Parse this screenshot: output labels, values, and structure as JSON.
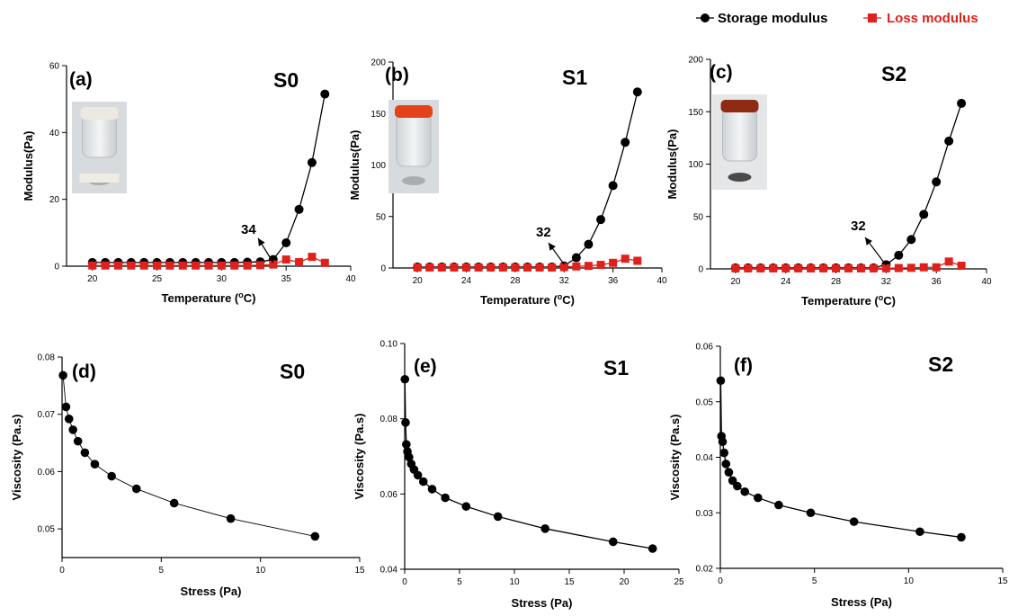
{
  "colors": {
    "storage": "#000000",
    "loss": "#e0201b",
    "axis": "#000000"
  },
  "legend": {
    "storage_label": "Storage modulus",
    "loss_label": "Loss modulus"
  },
  "chart_data": [
    {
      "panel": "(a)",
      "title": "S0",
      "type": "line",
      "xlabel": "Temperature (oC)",
      "ylabel": "Modulus(Pa)",
      "xlim": [
        18,
        40
      ],
      "ylim": [
        0,
        60
      ],
      "xticks": [
        20,
        25,
        30,
        35,
        40
      ],
      "yticks": [
        0,
        20,
        40,
        60
      ],
      "annotation": {
        "text": "34",
        "x": 34
      },
      "inset_photo": "vial-cloudy",
      "series": [
        {
          "name": "Storage modulus",
          "x": [
            20,
            21,
            22,
            23,
            24,
            25,
            26,
            27,
            28,
            29,
            30,
            31,
            32,
            33,
            34,
            35,
            36,
            37,
            38
          ],
          "y": [
            1.1,
            1.1,
            1.1,
            1.1,
            1.1,
            1.1,
            1.1,
            1.1,
            1.1,
            1.1,
            1.1,
            1.1,
            1.2,
            1.3,
            2.0,
            7,
            17,
            31,
            51.5
          ]
        },
        {
          "name": "Loss modulus",
          "x": [
            20,
            21,
            22,
            23,
            24,
            25,
            26,
            27,
            28,
            29,
            30,
            31,
            32,
            33,
            34,
            35,
            36,
            37,
            38
          ],
          "y": [
            0.2,
            0.2,
            0.2,
            0.2,
            0.2,
            0.2,
            0.2,
            0.2,
            0.2,
            0.2,
            0.2,
            0.2,
            0.2,
            0.3,
            0.5,
            2.0,
            1.2,
            2.8,
            1.0
          ]
        }
      ]
    },
    {
      "panel": "(b)",
      "title": "S1",
      "type": "line",
      "xlabel": "Temperature (oC)",
      "ylabel": "Modulus(Pa)",
      "xlim": [
        18,
        40
      ],
      "ylim": [
        0,
        200
      ],
      "xticks": [
        20,
        24,
        28,
        32,
        36,
        40
      ],
      "yticks": [
        0,
        50,
        100,
        150,
        200
      ],
      "annotation": {
        "text": "32",
        "x": 32
      },
      "inset_photo": "vial-orange-cap",
      "series": [
        {
          "name": "Storage modulus",
          "x": [
            20,
            21,
            22,
            23,
            24,
            25,
            26,
            27,
            28,
            29,
            30,
            31,
            32,
            33,
            34,
            35,
            36,
            37,
            38
          ],
          "y": [
            1,
            1,
            1,
            1,
            1,
            1,
            1,
            1,
            1,
            1,
            1,
            1,
            2,
            10,
            23,
            47,
            80,
            122,
            171
          ]
        },
        {
          "name": "Loss modulus",
          "x": [
            20,
            21,
            22,
            23,
            24,
            25,
            26,
            27,
            28,
            29,
            30,
            31,
            32,
            33,
            34,
            35,
            36,
            37,
            38
          ],
          "y": [
            0.5,
            0.5,
            0.5,
            0.5,
            0.5,
            0.5,
            0.5,
            0.5,
            0.5,
            0.5,
            0.5,
            0.5,
            0.8,
            1.5,
            2,
            3,
            5,
            9,
            7
          ]
        }
      ]
    },
    {
      "panel": "(c)",
      "title": "S2",
      "type": "line",
      "xlabel": "Temperature (oC)",
      "ylabel": "Modulus(Pa)",
      "xlim": [
        18,
        40
      ],
      "ylim": [
        0,
        200
      ],
      "xticks": [
        20,
        24,
        28,
        32,
        36,
        40
      ],
      "yticks": [
        0,
        50,
        100,
        150,
        200
      ],
      "annotation": {
        "text": "32",
        "x": 32
      },
      "inset_photo": "vial-brown-cap",
      "series": [
        {
          "name": "Storage modulus",
          "x": [
            20,
            21,
            22,
            23,
            24,
            25,
            26,
            27,
            28,
            29,
            30,
            31,
            32,
            33,
            34,
            35,
            36,
            37,
            38
          ],
          "y": [
            1,
            1,
            1,
            1,
            1,
            1,
            1,
            1,
            1,
            1,
            1,
            1,
            4,
            13,
            28,
            52,
            83,
            122,
            158
          ]
        },
        {
          "name": "Loss modulus",
          "x": [
            20,
            21,
            22,
            23,
            24,
            25,
            26,
            27,
            28,
            29,
            30,
            31,
            32,
            33,
            34,
            35,
            36,
            37,
            38
          ],
          "y": [
            0.5,
            0.5,
            0.5,
            0.5,
            0.5,
            0.5,
            0.5,
            0.5,
            0.5,
            0.5,
            0.5,
            0.5,
            0.6,
            0.8,
            1,
            1.5,
            1.5,
            7,
            3
          ]
        }
      ]
    },
    {
      "panel": "(d)",
      "title": "S0",
      "type": "line",
      "xlabel": "Stress (Pa)",
      "ylabel": "Viscosity (Pa.s)",
      "xlim": [
        0,
        15
      ],
      "ylim": [
        0.045,
        0.08
      ],
      "xticks": [
        0,
        5,
        10,
        15
      ],
      "yticks": [
        0.05,
        0.06,
        0.07,
        0.08
      ],
      "ytick_labels": [
        "0.05",
        "0.06",
        "0.07",
        "0.08"
      ],
      "series": [
        {
          "name": "Viscosity",
          "x": [
            0.05,
            0.2,
            0.35,
            0.55,
            0.8,
            1.15,
            1.65,
            2.5,
            3.75,
            5.65,
            8.5,
            12.75
          ],
          "y": [
            0.0768,
            0.0713,
            0.0692,
            0.0673,
            0.0653,
            0.0633,
            0.0613,
            0.0592,
            0.057,
            0.0545,
            0.0518,
            0.0487
          ]
        }
      ]
    },
    {
      "panel": "(e)",
      "title": "S1",
      "type": "line",
      "xlabel": "Stress (Pa)",
      "ylabel": "Viscosity (Pa.s)",
      "xlim": [
        0,
        25
      ],
      "ylim": [
        0.04,
        0.1
      ],
      "xticks": [
        0,
        5,
        10,
        15,
        20,
        25
      ],
      "yticks": [
        0.04,
        0.06,
        0.08,
        0.1
      ],
      "ytick_labels": [
        "0.04",
        "0.06",
        "0.08",
        "0.10"
      ],
      "series": [
        {
          "name": "Viscosity",
          "x": [
            0.02,
            0.08,
            0.15,
            0.25,
            0.4,
            0.6,
            0.85,
            1.2,
            1.7,
            2.5,
            3.7,
            5.6,
            8.5,
            12.8,
            19,
            22.6
          ],
          "y": [
            0.0905,
            0.079,
            0.0732,
            0.0713,
            0.0698,
            0.068,
            0.0665,
            0.065,
            0.0633,
            0.0613,
            0.059,
            0.0567,
            0.054,
            0.0508,
            0.0473,
            0.0455
          ]
        }
      ]
    },
    {
      "panel": "(f)",
      "title": "S2",
      "type": "line",
      "xlabel": "Stress (Pa)",
      "ylabel": "Viscosity (Pa.s)",
      "xlim": [
        0,
        15
      ],
      "ylim": [
        0.02,
        0.06
      ],
      "xticks": [
        0,
        5,
        10,
        15
      ],
      "yticks": [
        0.02,
        0.03,
        0.04,
        0.05,
        0.06
      ],
      "ytick_labels": [
        "0.02",
        "0.03",
        "0.04",
        "0.05",
        "0.06"
      ],
      "series": [
        {
          "name": "Viscosity",
          "x": [
            0.02,
            0.06,
            0.12,
            0.2,
            0.3,
            0.45,
            0.65,
            0.9,
            1.3,
            2.0,
            3.1,
            4.8,
            7.1,
            10.6,
            12.8
          ],
          "y": [
            0.0538,
            0.0438,
            0.0428,
            0.0408,
            0.0388,
            0.0373,
            0.0358,
            0.0348,
            0.0338,
            0.0327,
            0.0314,
            0.03,
            0.0284,
            0.0266,
            0.0256
          ]
        }
      ]
    }
  ]
}
